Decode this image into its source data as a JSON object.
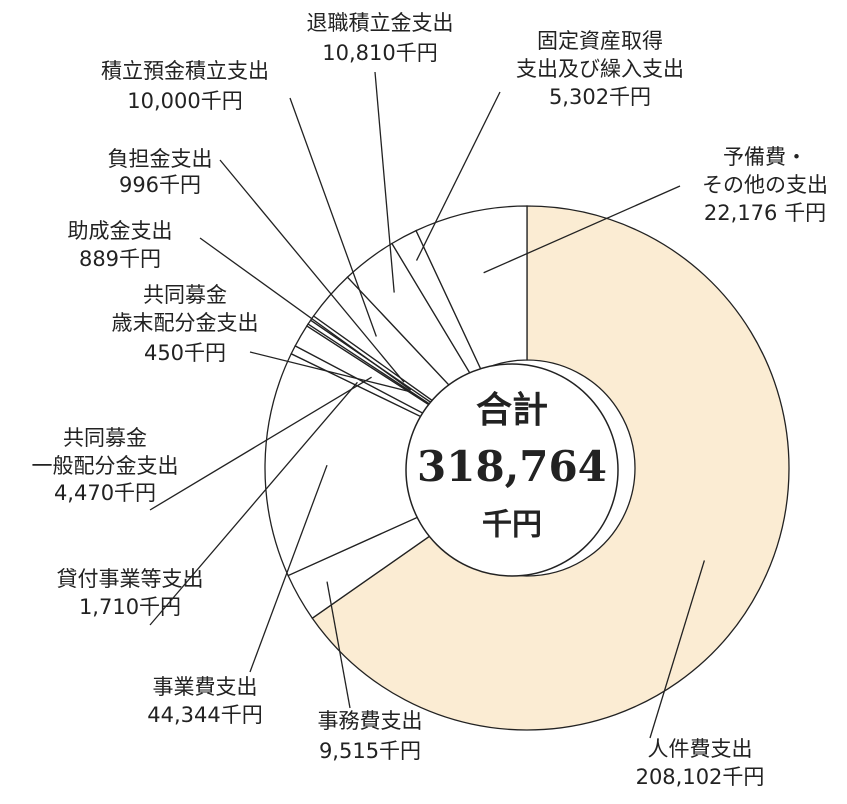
{
  "chart_data": {
    "type": "pie",
    "donut": true,
    "categories": [
      "人件費支出",
      "事務費支出",
      "事業費支出",
      "貸付事業等支出",
      "共同募金\n一般配分金支出",
      "共同募金\n歳末配分金支出",
      "助成金支出",
      "負担金支出",
      "積立預金積立支出",
      "退職積立金支出",
      "固定資産取得\n支出及び繰入支出",
      "予備費・\nその他の支出"
    ],
    "values": [
      208102,
      9515,
      44344,
      1710,
      4470,
      450,
      889,
      996,
      10000,
      10810,
      5302,
      22176
    ],
    "value_labels": [
      "208,102千円",
      "9,515千円",
      "44,344千円",
      "1,710千円",
      "4,470千円",
      "450千円",
      "889千円",
      "996千円",
      "10,000千円",
      "10,810千円",
      "5,302千円",
      "22,176 千円"
    ],
    "colors": [
      "#fbecd3",
      "#ffffff",
      "#ffffff",
      "#ffffff",
      "#ffffff",
      "#ffffff",
      "#ffffff",
      "#ffffff",
      "#ffffff",
      "#ffffff",
      "#ffffff",
      "#ffffff"
    ],
    "total_label": "合計",
    "total": 318764,
    "total_value_label": "318,764",
    "total_unit": "千円"
  }
}
